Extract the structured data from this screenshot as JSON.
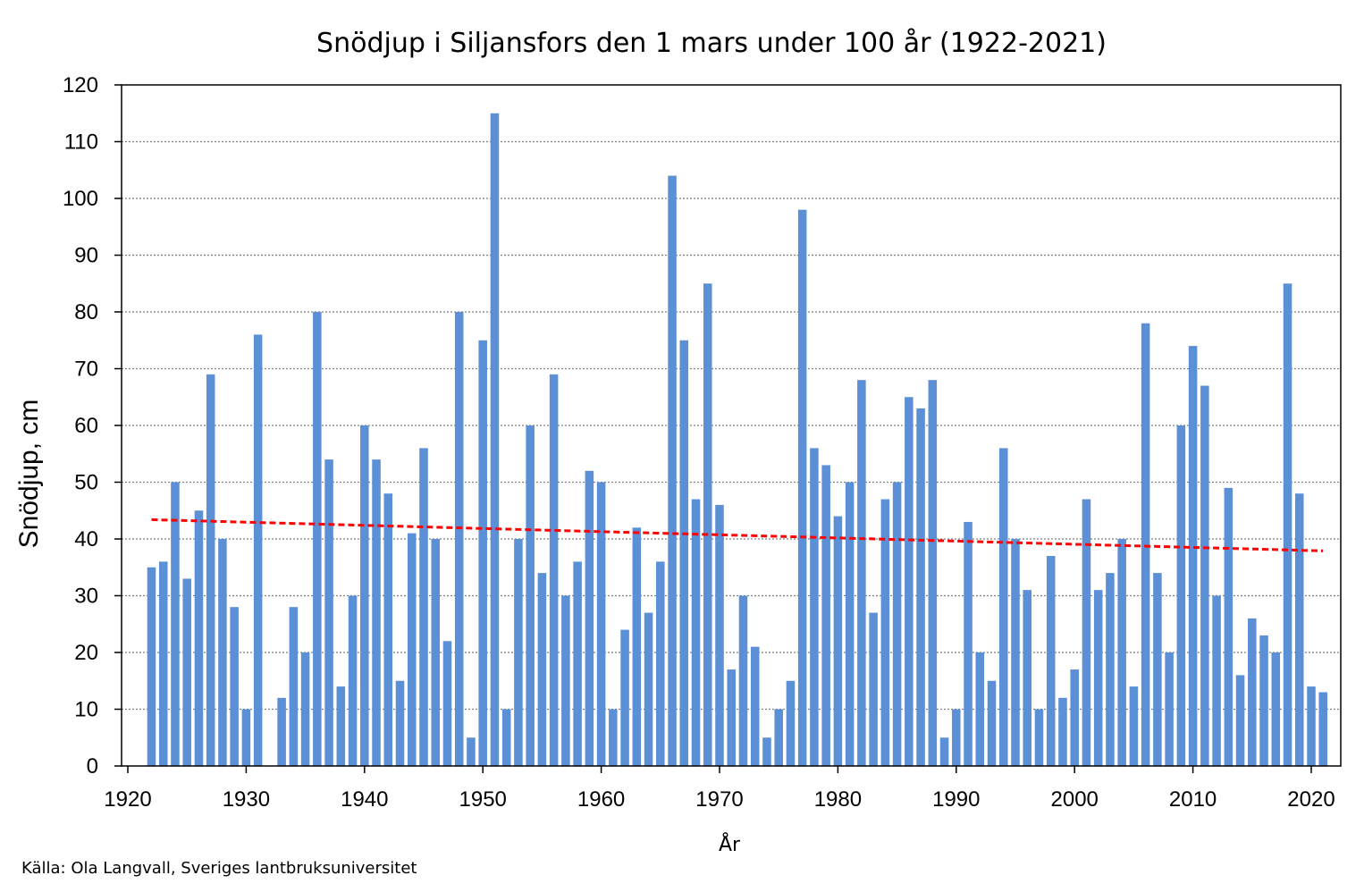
{
  "chart_data": {
    "type": "bar",
    "title": "Snödjup i Siljansfors den 1 mars under 100 år (1922-2021)",
    "xlabel": "År",
    "ylabel": "Snödjup,  cm",
    "source": "Källa: Ola Langvall, Sveriges lantbruksuniversitet",
    "xlim": [
      1920,
      2022
    ],
    "ylim": [
      0,
      120
    ],
    "x_ticks": [
      1920,
      1930,
      1940,
      1950,
      1960,
      1970,
      1980,
      1990,
      2000,
      2010,
      2020
    ],
    "y_ticks": [
      0,
      10,
      20,
      30,
      40,
      50,
      60,
      70,
      80,
      90,
      100,
      110,
      120
    ],
    "grid": "horizontal dotted",
    "bar_color": "#5B8FD6",
    "trend_color": "#FF0000",
    "trend": {
      "x": [
        1922,
        2021
      ],
      "y": [
        43.4,
        37.9
      ]
    },
    "x": [
      1922,
      1923,
      1924,
      1925,
      1926,
      1927,
      1928,
      1929,
      1930,
      1931,
      1932,
      1933,
      1934,
      1935,
      1936,
      1937,
      1938,
      1939,
      1940,
      1941,
      1942,
      1943,
      1944,
      1945,
      1946,
      1947,
      1948,
      1949,
      1950,
      1951,
      1952,
      1953,
      1954,
      1955,
      1956,
      1957,
      1958,
      1959,
      1960,
      1961,
      1962,
      1963,
      1964,
      1965,
      1966,
      1967,
      1968,
      1969,
      1970,
      1971,
      1972,
      1973,
      1974,
      1975,
      1976,
      1977,
      1978,
      1979,
      1980,
      1981,
      1982,
      1983,
      1984,
      1985,
      1986,
      1987,
      1988,
      1989,
      1990,
      1991,
      1992,
      1993,
      1994,
      1995,
      1996,
      1997,
      1998,
      1999,
      2000,
      2001,
      2002,
      2003,
      2004,
      2005,
      2006,
      2007,
      2008,
      2009,
      2010,
      2011,
      2012,
      2013,
      2014,
      2015,
      2016,
      2017,
      2018,
      2019,
      2020,
      2021
    ],
    "values": [
      35,
      36,
      50,
      33,
      45,
      69,
      40,
      28,
      10,
      76,
      0,
      12,
      28,
      20,
      80,
      54,
      14,
      30,
      60,
      54,
      48,
      15,
      41,
      56,
      40,
      22,
      80,
      5,
      75,
      115,
      10,
      40,
      60,
      34,
      69,
      30,
      36,
      52,
      50,
      10,
      24,
      42,
      27,
      36,
      104,
      75,
      47,
      85,
      46,
      17,
      30,
      21,
      5,
      10,
      15,
      98,
      56,
      53,
      44,
      50,
      68,
      27,
      47,
      50,
      65,
      63,
      68,
      5,
      10,
      43,
      20,
      15,
      56,
      40,
      31,
      10,
      37,
      12,
      17,
      47,
      31,
      34,
      40,
      14,
      78,
      34,
      20,
      60,
      74,
      67,
      30,
      49,
      16,
      26,
      23,
      20,
      85,
      48,
      14,
      13
    ]
  }
}
